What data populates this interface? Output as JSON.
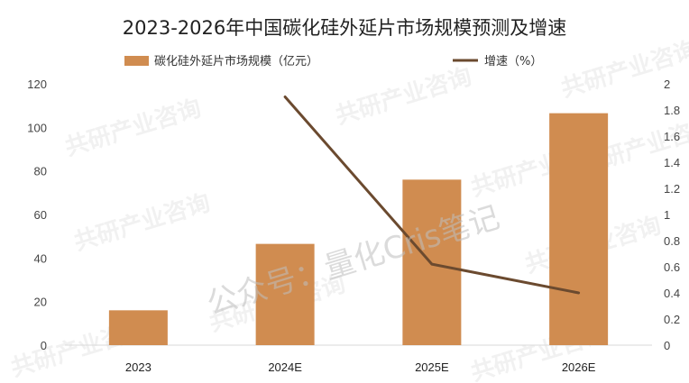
{
  "chart_data": {
    "type": "bar+line",
    "title": "2023-2026年中国碳化硅外延片市场规模预测及增速",
    "categories": [
      "2023",
      "2024E",
      "2025E",
      "2026E"
    ],
    "series": [
      {
        "name": "碳化硅外延片市场规模（亿元）",
        "type": "bar",
        "axis": "left",
        "color": "#D08C50",
        "values": [
          16,
          46.5,
          76,
          106.5
        ]
      },
      {
        "name": "增速（%）",
        "type": "line",
        "axis": "right",
        "color": "#6B4A2F",
        "values": [
          null,
          1.9,
          0.62,
          0.4
        ]
      }
    ],
    "y_left": {
      "min": 0,
      "max": 120,
      "ticks": [
        "0",
        "20",
        "40",
        "60",
        "80",
        "100",
        "120"
      ]
    },
    "y_right": {
      "min": 0,
      "max": 2,
      "ticks": [
        "0",
        "0.2",
        "0.4",
        "0.6",
        "0.8",
        "1",
        "1.2",
        "1.4",
        "1.6",
        "1.8",
        "2"
      ]
    },
    "grid": false,
    "legend_position": "top"
  },
  "watermarks": {
    "main": "公众号：量化Cris笔记",
    "background": "共研产业咨询",
    "background_url": "gonyn.com"
  }
}
